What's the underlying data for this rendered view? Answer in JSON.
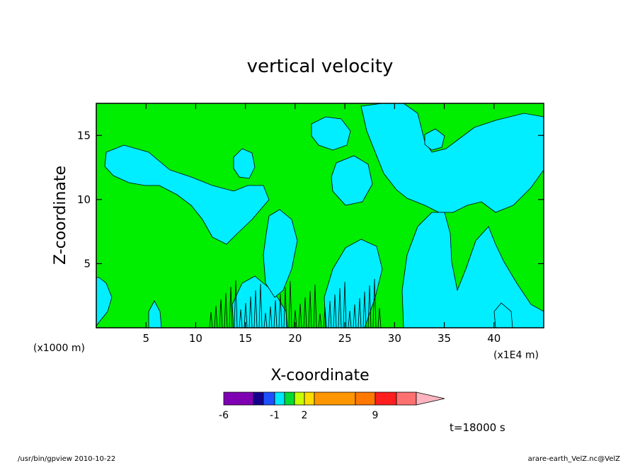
{
  "chart_data": {
    "type": "heatmap",
    "title": "vertical velocity",
    "xlabel": "X-coordinate",
    "ylabel": "Z-coordinate",
    "x_unit_note": "(x1000 m)",
    "y_unit_note": "(x1E4 m)",
    "xlim": [
      0,
      45
    ],
    "ylim": [
      0,
      17.5
    ],
    "x_ticks": [
      5,
      10,
      15,
      20,
      25,
      30,
      35,
      40
    ],
    "y_ticks": [
      5,
      10,
      15
    ],
    "x_tick_labels": [
      "5",
      "10",
      "15",
      "20",
      "25",
      "30",
      "35",
      "40"
    ],
    "y_tick_labels": [
      "5",
      "10",
      "15"
    ],
    "grid": false,
    "contour_regions": [
      {
        "name": "green",
        "color": "#00ee00"
      },
      {
        "name": "cyan",
        "color": "#00eeff"
      }
    ],
    "colorbar": {
      "colors": [
        "#7f00b2",
        "#14008c",
        "#1e50ff",
        "#00e6ff",
        "#00dc32",
        "#c8ff00",
        "#ffdc00",
        "#ff9600",
        "#ff7800",
        "#ff1e1e",
        "#ff7070",
        "#ffb4c0"
      ],
      "tick_labels": [
        "-6",
        "-1",
        "2",
        "9"
      ]
    },
    "annotation": "t=18000 s"
  },
  "footer": {
    "left": "/usr/bin/gpview   2010-10-22",
    "right": "arare-earth_VelZ.nc@VelZ"
  }
}
